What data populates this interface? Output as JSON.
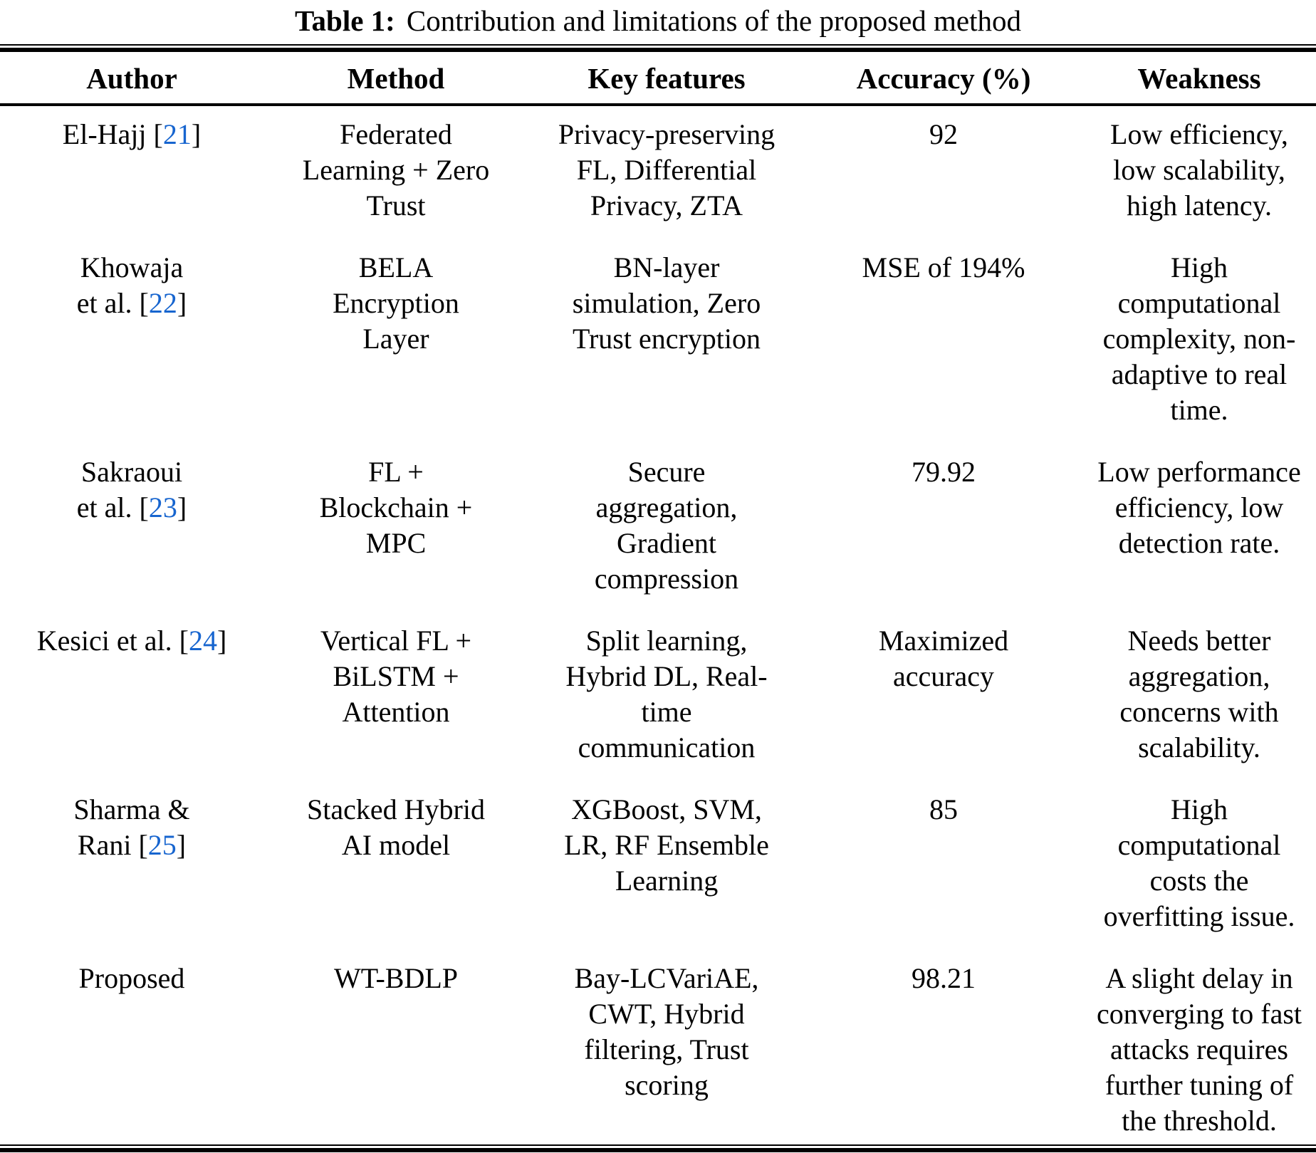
{
  "caption": {
    "label": "Table 1:",
    "text": "Contribution and limitations of the proposed method"
  },
  "table": {
    "link_color": "#1765cf",
    "columns": [
      "Author",
      "Method",
      "Key features",
      "Accuracy (%)",
      "Weakness"
    ],
    "rows": [
      {
        "author": "El-Hajj [21]",
        "method": "Federated Learning + Zero Trust",
        "key_features": "Privacy-preserving FL, Differential Privacy, ZTA",
        "accuracy": "92",
        "weakness": "Low efficiency, low scalability, high latency."
      },
      {
        "author": "Khowaja et al. [22]",
        "method": "BELA Encryption Layer",
        "key_features": "BN-layer simulation, Zero Trust encryption",
        "accuracy": "MSE of 194%",
        "weakness": "High computational complexity, non-adaptive to real time."
      },
      {
        "author": "Sakraoui et al. [23]",
        "method": "FL + Blockchain + MPC",
        "key_features": "Secure aggregation, Gradient compression",
        "accuracy": "79.92",
        "weakness": "Low performance efficiency, low detection rate."
      },
      {
        "author": "Kesici et al. [24]",
        "method": "Vertical FL + BiLSTM + Attention",
        "key_features": "Split learning, Hybrid DL, Real-time communication",
        "accuracy": "Maximized accuracy",
        "weakness": "Needs better aggregation, concerns with scalability."
      },
      {
        "author": "Sharma & Rani [25]",
        "method": "Stacked Hybrid AI model",
        "key_features": "XGBoost, SVM, LR, RF Ensemble Learning",
        "accuracy": "85",
        "weakness": "High computational costs the overfitting issue."
      },
      {
        "author": "Proposed",
        "method": "WT-BDLP",
        "key_features": "Bay-LCVariAE, CWT, Hybrid filtering, Trust scoring",
        "accuracy": "98.21",
        "weakness": "A slight delay in converging to fast attacks requires further tuning of the threshold."
      }
    ]
  }
}
